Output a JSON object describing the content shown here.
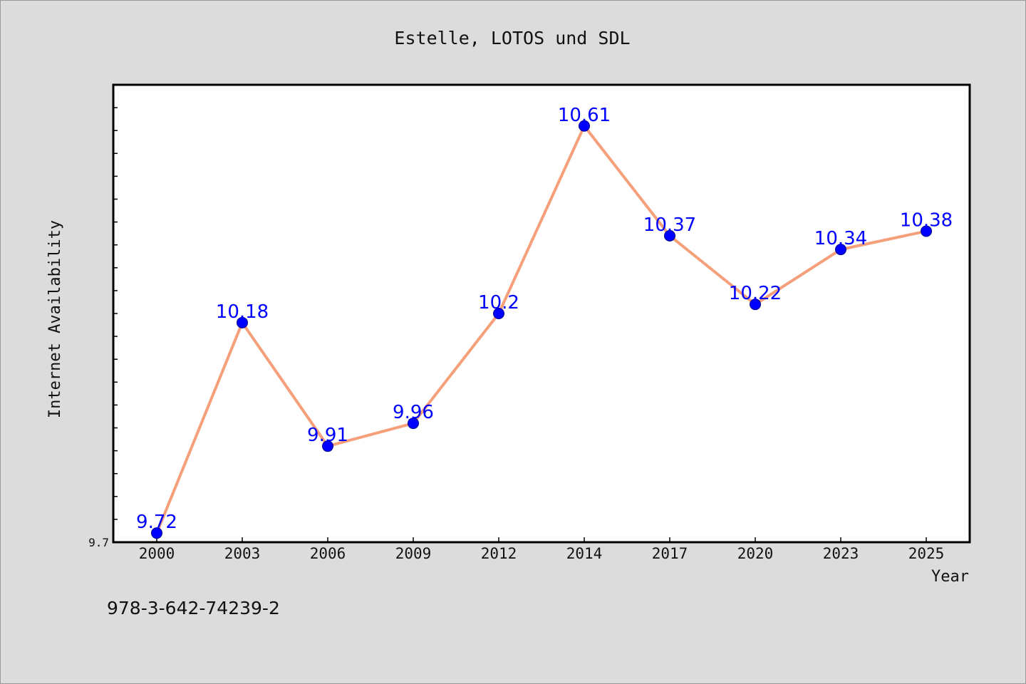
{
  "chart_data": {
    "type": "line",
    "title": "Estelle, LOTOS und SDL",
    "xlabel": "Year",
    "ylabel": "Internet Availability",
    "categories": [
      "2000",
      "2003",
      "2006",
      "2009",
      "2012",
      "2014",
      "2017",
      "2020",
      "2023",
      "2025"
    ],
    "series": [
      {
        "values": [
          9.72,
          10.18,
          9.91,
          9.96,
          10.2,
          10.61,
          10.37,
          10.22,
          10.34,
          10.38
        ],
        "labels": [
          "9.72",
          "10.18",
          "9.91",
          "9.96",
          "10.2",
          "10.61",
          "10.37",
          "10.22",
          "10.34",
          "10.38"
        ],
        "line_color": "#f5a07a",
        "marker_color": "#0000ff"
      }
    ],
    "ylim": [
      9.7,
      10.7
    ],
    "yticks_labeled": [
      "9.7"
    ],
    "grid": false,
    "legend": "none"
  },
  "footnote": "978-3-642-74239-2"
}
